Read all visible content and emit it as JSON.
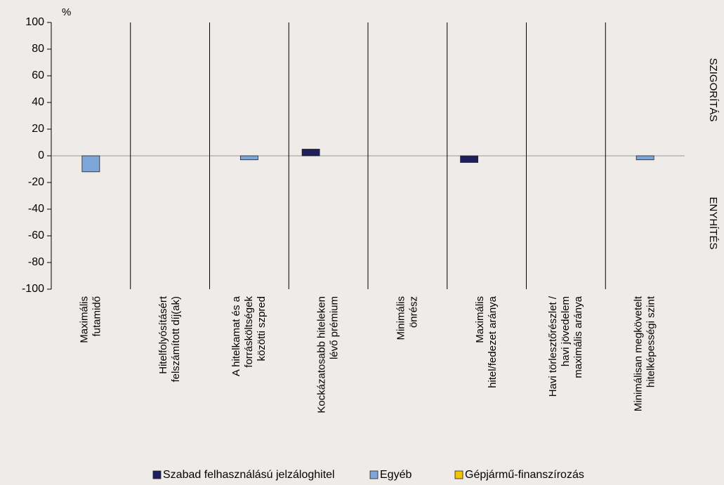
{
  "chart_data": {
    "type": "bar",
    "y_unit_label": "%",
    "right_labels": [
      "SZIGORÍTÁS",
      "ENYHÍTÉS"
    ],
    "categories": [
      [
        "Maximális",
        "futamidő"
      ],
      [
        "Hitelfolyósításért",
        "felszámított díj(ak)"
      ],
      [
        "A hitelkamat és a",
        "forrásköltségek",
        "közötti szpred"
      ],
      [
        "Kockázatosabb hiteleken",
        "lévő prémium"
      ],
      [
        "Minimális",
        "önrész"
      ],
      [
        "Maximális",
        "hitel/fedezet aránya"
      ],
      [
        "Havi törlesztőrészlet /",
        "havi jövedelem",
        "maximális aránya"
      ],
      [
        "Minimálisan megkövetelt",
        "hitelképességi szint"
      ]
    ],
    "series": [
      {
        "name": "Szabad felhasználású jelzáloghitel",
        "color": "#1f1f5c",
        "values": [
          0,
          0,
          0,
          5,
          0,
          -5,
          0,
          0
        ]
      },
      {
        "name": "Egyéb",
        "color": "#7ea6d8",
        "values": [
          -12,
          0,
          -3,
          0,
          0,
          0,
          0,
          -3
        ]
      },
      {
        "name": "Gépjármű-finanszírozás",
        "color": "#f5c400",
        "values": [
          0,
          0,
          0,
          0,
          0,
          0,
          0,
          0
        ]
      }
    ],
    "ylim": [
      -100,
      100
    ],
    "yticks": [
      -100,
      -80,
      -60,
      -40,
      -20,
      0,
      20,
      40,
      60,
      80,
      100
    ],
    "grid": false
  }
}
